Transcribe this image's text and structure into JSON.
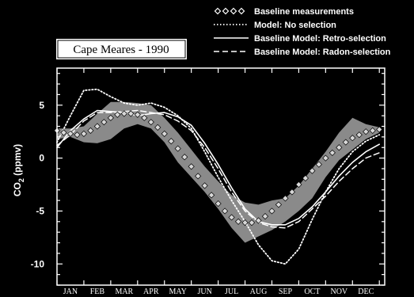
{
  "chart_data": {
    "type": "line",
    "title": "Cape Meares - 1990",
    "ylabel_prefix": "CO",
    "ylabel_sub": "2",
    "ylabel_suffix": " (ppmv)",
    "categories": [
      "JAN",
      "FEB",
      "MAR",
      "APR",
      "MAY",
      "JUN",
      "JUL",
      "AUG",
      "SEP",
      "OCT",
      "NOV",
      "DEC"
    ],
    "yticks": [
      5,
      0,
      -5,
      -10
    ],
    "ylim": [
      -12,
      8.5
    ],
    "xlim": [
      0,
      12.2
    ],
    "colors": {
      "background": "#000000",
      "foreground": "#ffffff",
      "band": "#8a8a8a",
      "baseline_marker": "#d8d8d8"
    },
    "legend_position": "top-right",
    "band": {
      "x": [
        0,
        0.5,
        1,
        1.5,
        2,
        2.5,
        3,
        3.5,
        4,
        4.5,
        5,
        5.5,
        6,
        6.5,
        7,
        7.5,
        8,
        8.5,
        9,
        9.5,
        10,
        10.5,
        11,
        11.5,
        12
      ],
      "upper": [
        2.8,
        2.8,
        3.0,
        4.2,
        5.3,
        5.3,
        5.2,
        5.0,
        3.8,
        2.4,
        0.8,
        -0.8,
        -2.2,
        -3.5,
        -4.2,
        -4.4,
        -4.0,
        -3.8,
        -2.6,
        -1.0,
        0.6,
        2.4,
        3.8,
        3.2,
        2.9
      ],
      "lower": [
        1.8,
        2.0,
        1.5,
        1.4,
        1.8,
        2.8,
        3.2,
        2.8,
        1.5,
        -0.4,
        -1.8,
        -3.2,
        -4.8,
        -6.6,
        -8.0,
        -7.4,
        -6.8,
        -6.0,
        -5.0,
        -3.8,
        -1.8,
        -0.2,
        0.8,
        1.8,
        2.4
      ]
    },
    "series": [
      {
        "name": "Baseline measurements",
        "style": "markers",
        "x": [
          0,
          0.25,
          0.5,
          0.75,
          1,
          1.25,
          1.5,
          1.75,
          2,
          2.25,
          2.5,
          2.75,
          3,
          3.25,
          3.5,
          3.75,
          4,
          4.25,
          4.5,
          4.75,
          5,
          5.25,
          5.5,
          5.75,
          6,
          6.25,
          6.5,
          6.75,
          7,
          7.25,
          7.5,
          7.75,
          8,
          8.25,
          8.5,
          8.75,
          9,
          9.25,
          9.5,
          9.75,
          10,
          10.25,
          10.5,
          10.75,
          11,
          11.25,
          11.5,
          11.75,
          12
        ],
        "y": [
          2.6,
          2.4,
          2.3,
          2.2,
          2.3,
          2.6,
          3.0,
          3.4,
          3.8,
          4.1,
          4.2,
          4.2,
          4.1,
          3.8,
          3.4,
          2.9,
          2.3,
          1.6,
          0.9,
          0.1,
          -0.8,
          -1.7,
          -2.6,
          -3.5,
          -4.3,
          -5.0,
          -5.6,
          -6.0,
          -6.1,
          -6.1,
          -5.9,
          -5.5,
          -5.0,
          -4.4,
          -3.8,
          -3.2,
          -2.5,
          -1.9,
          -1.2,
          -0.6,
          0.0,
          0.5,
          1.0,
          1.5,
          1.9,
          2.2,
          2.5,
          2.6,
          2.7
        ]
      },
      {
        "name": "Model: No selection",
        "style": "dotted",
        "x": [
          0,
          0.5,
          1,
          1.5,
          2,
          2.5,
          3,
          3.5,
          4,
          4.5,
          5,
          5.5,
          6,
          6.5,
          7,
          7.5,
          8,
          8.5,
          9,
          9.5,
          10,
          10.5,
          11,
          11.5,
          12
        ],
        "y": [
          1.5,
          4.0,
          6.4,
          6.5,
          5.8,
          5.2,
          5.0,
          5.2,
          4.8,
          4.0,
          2.8,
          0.6,
          -1.8,
          -4.0,
          -6.0,
          -8.2,
          -9.7,
          -10.0,
          -8.6,
          -5.8,
          -3.2,
          -1.0,
          0.6,
          1.6,
          2.2
        ]
      },
      {
        "name": "Baseline Model: Retro-selection",
        "style": "solid",
        "x": [
          0,
          0.5,
          1,
          1.5,
          2,
          2.5,
          3,
          3.5,
          4,
          4.5,
          5,
          5.5,
          6,
          6.5,
          7,
          7.5,
          8,
          8.5,
          9,
          9.5,
          10,
          10.5,
          11,
          11.5,
          12
        ],
        "y": [
          1.0,
          2.6,
          3.7,
          4.5,
          4.4,
          4.3,
          4.0,
          4.2,
          4.3,
          3.9,
          3.1,
          1.4,
          -0.6,
          -2.8,
          -4.8,
          -6.0,
          -6.3,
          -6.3,
          -5.7,
          -4.6,
          -3.2,
          -1.7,
          -0.4,
          0.6,
          1.3
        ]
      },
      {
        "name": "Baseline Model: Radon-selection",
        "style": "dashed",
        "x": [
          0,
          0.5,
          1,
          1.5,
          2,
          2.5,
          3,
          3.5,
          4,
          4.5,
          5,
          5.5,
          6,
          6.5,
          7,
          7.5,
          8,
          8.5,
          9,
          9.5,
          10,
          10.5,
          11,
          11.5,
          12
        ],
        "y": [
          1.2,
          2.2,
          3.5,
          4.3,
          4.3,
          4.4,
          4.5,
          4.3,
          4.1,
          3.5,
          2.6,
          1.0,
          -1.0,
          -3.2,
          -5.0,
          -6.1,
          -6.5,
          -6.6,
          -6.0,
          -4.8,
          -3.6,
          -2.2,
          -1.0,
          0.0,
          0.5
        ]
      }
    ]
  }
}
